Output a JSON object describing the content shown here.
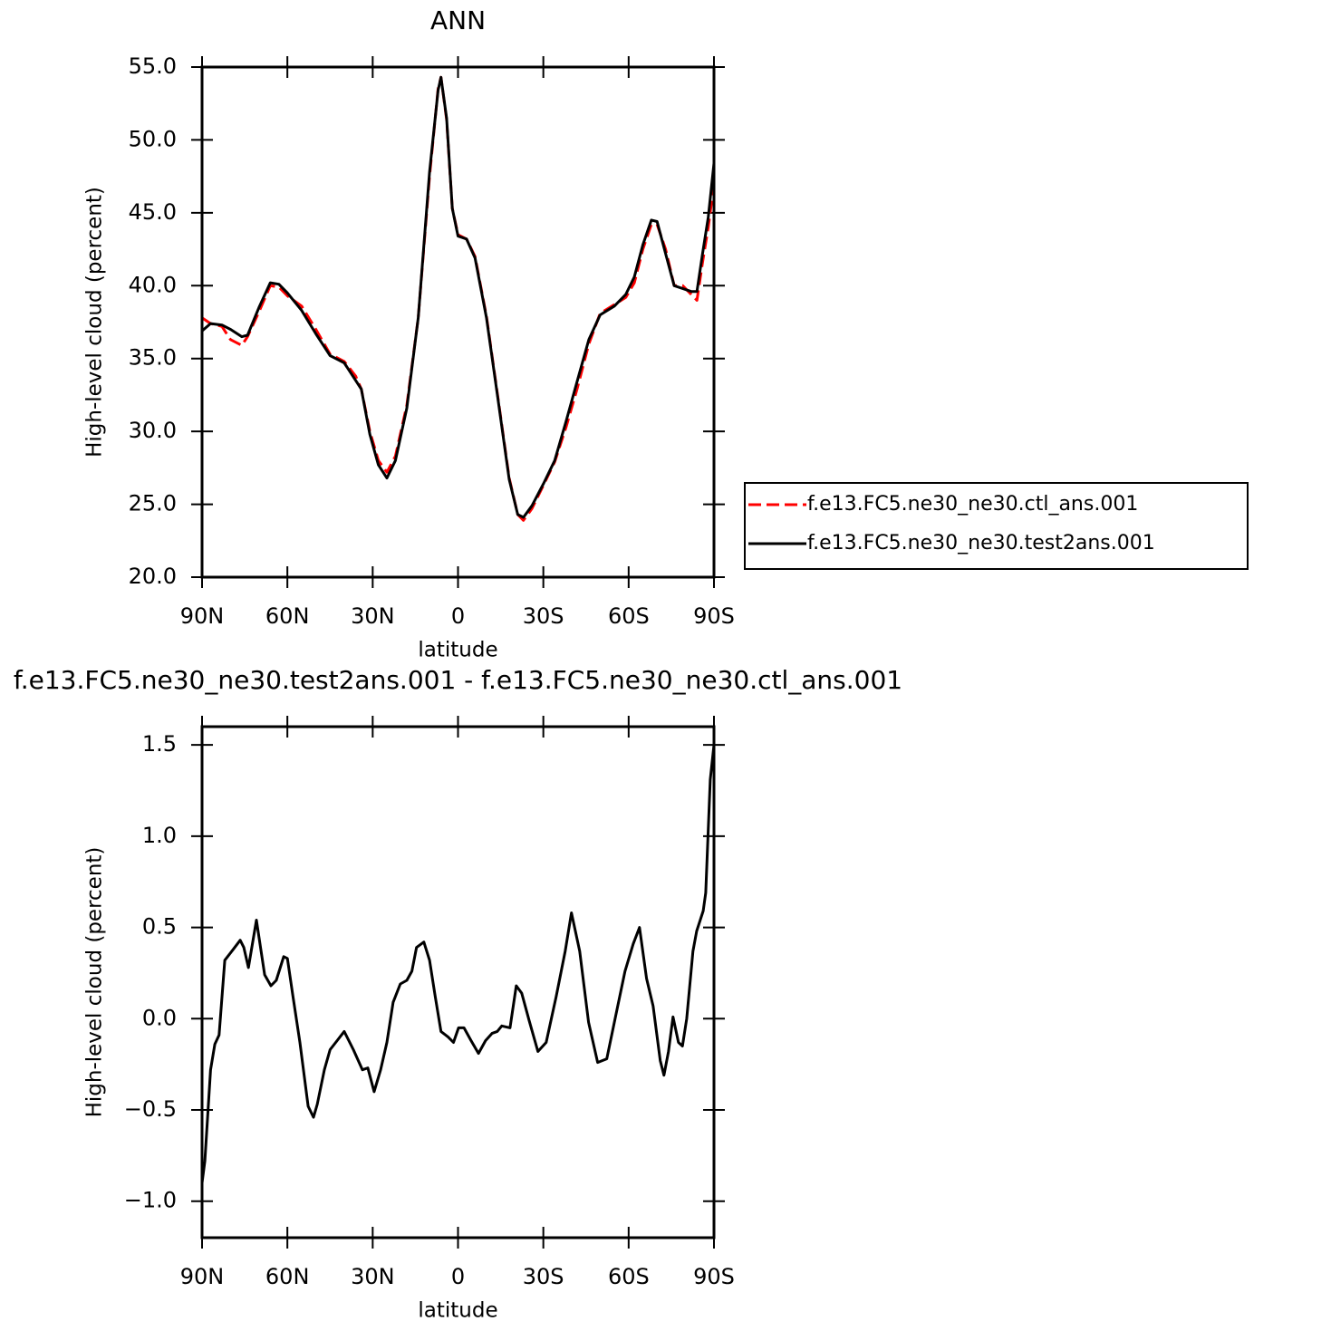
{
  "chart_data": [
    {
      "type": "line",
      "title": "ANN",
      "xlabel": "latitude",
      "ylabel": "High-level cloud (percent)",
      "x": [
        90,
        87,
        83,
        80,
        76,
        74,
        70,
        66,
        63,
        60,
        55,
        50,
        45,
        42,
        40,
        36,
        34,
        31,
        28,
        25,
        22,
        18,
        14,
        10,
        7,
        6,
        4,
        2,
        0,
        -3,
        -6,
        -10,
        -14,
        -18,
        -21,
        -23,
        -26,
        -30,
        -34,
        -38,
        -42,
        -46,
        -50,
        -55,
        -59,
        -62,
        -65,
        -68,
        -70,
        -73,
        -76,
        -79,
        -82,
        -84,
        -86,
        -88,
        -90
      ],
      "series": [
        {
          "name": "f.e13.FC5.ne30_ne30.ctl_ans.001",
          "color": "#ff0000",
          "line_style": "dashed",
          "values": [
            37.8,
            37.4,
            37.2,
            36.3,
            35.9,
            36.5,
            38.2,
            40.0,
            39.9,
            39.3,
            38.6,
            37.0,
            35.3,
            35.0,
            34.8,
            33.8,
            32.9,
            30.0,
            28.0,
            27.2,
            28.3,
            31.8,
            37.8,
            47.5,
            53.5,
            54.3,
            51.4,
            45.3,
            43.5,
            43.2,
            42.0,
            37.9,
            32.4,
            26.8,
            24.3,
            23.9,
            24.7,
            26.3,
            27.9,
            30.3,
            33.0,
            36.0,
            38.1,
            38.7,
            39.2,
            40.2,
            42.5,
            44.2,
            44.2,
            42.5,
            40.0,
            40.0,
            39.4,
            39.0,
            41.6,
            44.0,
            47.0
          ]
        },
        {
          "name": "f.e13.FC5.ne30_ne30.test2ans.001",
          "color": "#000000",
          "line_style": "solid",
          "values": [
            36.9,
            37.4,
            37.3,
            37.0,
            36.5,
            36.6,
            38.5,
            40.2,
            40.1,
            39.5,
            38.3,
            36.7,
            35.2,
            34.9,
            34.7,
            33.5,
            32.9,
            29.8,
            27.7,
            26.8,
            28.0,
            31.6,
            37.8,
            47.8,
            53.4,
            54.3,
            51.5,
            45.3,
            43.4,
            43.2,
            41.9,
            37.8,
            32.3,
            26.7,
            24.3,
            24.1,
            24.9,
            26.4,
            28.0,
            30.7,
            33.5,
            36.3,
            38.0,
            38.6,
            39.4,
            40.6,
            42.8,
            44.5,
            44.4,
            42.2,
            40.0,
            39.8,
            39.6,
            39.6,
            42.2,
            44.7,
            48.4
          ]
        }
      ],
      "xlim": [
        90,
        -90
      ],
      "xticks": [
        {
          "value": 90,
          "label": "90N"
        },
        {
          "value": 60,
          "label": "60N"
        },
        {
          "value": 30,
          "label": "30N"
        },
        0,
        {
          "value": -30,
          "label": "30S"
        },
        {
          "value": -60,
          "label": "60S"
        },
        {
          "value": -90,
          "label": "90S"
        }
      ],
      "ylim": [
        20,
        55
      ],
      "yticks": [
        {
          "value": 20,
          "label": "20.0"
        },
        {
          "value": 25,
          "label": "25.0"
        },
        {
          "value": 30,
          "label": "30.0"
        },
        {
          "value": 35,
          "label": "35.0"
        },
        {
          "value": 40,
          "label": "40.0"
        },
        {
          "value": 45,
          "label": "45.0"
        },
        {
          "value": 50,
          "label": "50.0"
        },
        {
          "value": 55,
          "label": "55.0"
        }
      ],
      "legend": "outside-right"
    },
    {
      "type": "line",
      "title": "f.e13.FC5.ne30_ne30.test2ans.001 - f.e13.FC5.ne30_ne30.ctl_ans.001",
      "xlabel": "latitude",
      "ylabel": "High-level cloud (percent)",
      "x": [
        90,
        89,
        87,
        85.5,
        84,
        82,
        79,
        76.6,
        75.3,
        73.7,
        70.9,
        68,
        65.8,
        63.9,
        61.3,
        60,
        58,
        55.6,
        52.7,
        50.8,
        49.5,
        47,
        45,
        42.5,
        40,
        36.8,
        33.6,
        31.7,
        29.5,
        27.2,
        25,
        22.8,
        20.3,
        18,
        16.2,
        14.6,
        12,
        10,
        8,
        6,
        3.5,
        1.6,
        -0.2,
        -2.1,
        -4.6,
        -7.2,
        -9.7,
        -12,
        -13.8,
        -15.4,
        -18.3,
        -20.5,
        -22.4,
        -25,
        -28.1,
        -31,
        -34.5,
        -37.7,
        -39.9,
        -42.8,
        -45.9,
        -49.1,
        -52.3,
        -55.5,
        -58.7,
        -61.6,
        -63.8,
        -66.3,
        -68.6,
        -71.1,
        -72.4,
        -74,
        -75.6,
        -77.5,
        -78.9,
        -80.4,
        -82.6,
        -83.9,
        -86.2,
        -87.1,
        -88.7,
        -90
      ],
      "series": [
        {
          "color": "#000000",
          "line_style": "solid",
          "values": [
            -0.9,
            -0.78,
            -0.28,
            -0.14,
            -0.09,
            0.32,
            0.38,
            0.43,
            0.39,
            0.28,
            0.54,
            0.24,
            0.18,
            0.21,
            0.34,
            0.33,
            0.12,
            -0.13,
            -0.48,
            -0.54,
            -0.47,
            -0.28,
            -0.17,
            -0.12,
            -0.07,
            -0.17,
            -0.28,
            -0.27,
            -0.4,
            -0.28,
            -0.13,
            0.09,
            0.19,
            0.21,
            0.26,
            0.39,
            0.42,
            0.32,
            0.12,
            -0.07,
            -0.1,
            -0.13,
            -0.05,
            -0.05,
            -0.12,
            -0.19,
            -0.12,
            -0.08,
            -0.07,
            -0.04,
            -0.05,
            0.18,
            0.14,
            -0.01,
            -0.18,
            -0.13,
            0.12,
            0.37,
            0.58,
            0.37,
            -0.02,
            -0.24,
            -0.22,
            0.02,
            0.26,
            0.41,
            0.5,
            0.22,
            0.07,
            -0.23,
            -0.31,
            -0.18,
            0.01,
            -0.13,
            -0.15,
            0,
            0.37,
            0.48,
            0.59,
            0.69,
            1.31,
            1.5
          ]
        }
      ],
      "xlim": [
        90,
        -90
      ],
      "xticks": [
        {
          "value": 90,
          "label": "90N"
        },
        {
          "value": 60,
          "label": "60N"
        },
        {
          "value": 30,
          "label": "30N"
        },
        0,
        {
          "value": -30,
          "label": "30S"
        },
        {
          "value": -60,
          "label": "60S"
        },
        {
          "value": -90,
          "label": "90S"
        }
      ],
      "ylim": [
        -1.2,
        1.6
      ],
      "yticks": [
        {
          "value": -1,
          "label": "−1.0"
        },
        {
          "value": -0.5,
          "label": "−0.5"
        },
        {
          "value": 0,
          "label": "0.0"
        },
        0.5,
        {
          "value": 1,
          "label": "1.0"
        },
        1.5
      ]
    }
  ]
}
